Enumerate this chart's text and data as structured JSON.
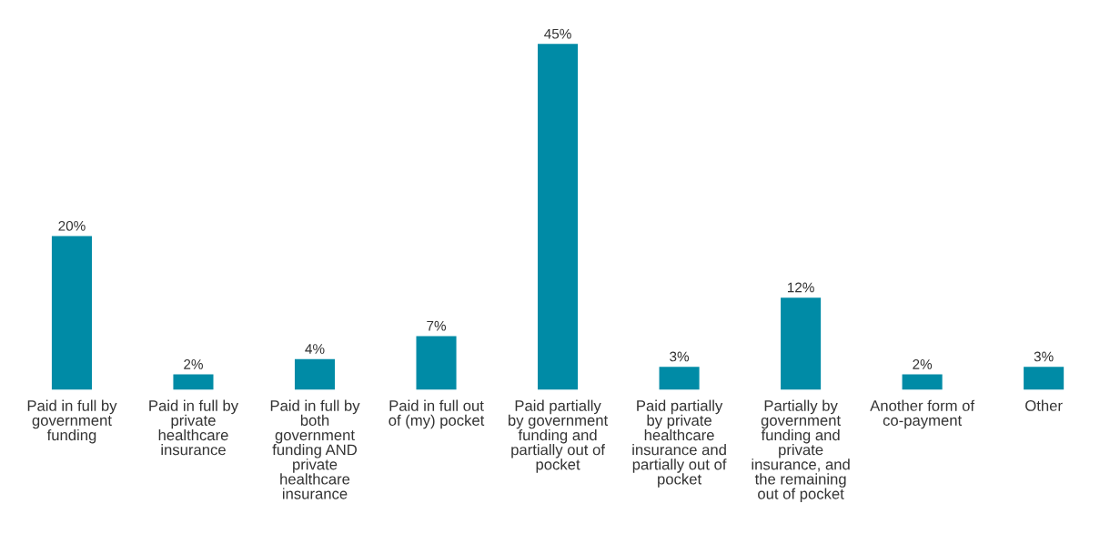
{
  "chart_data": {
    "type": "bar",
    "categories": [
      "Paid in full by\ngovernment\nfunding",
      "Paid in full by\nprivate\nhealthcare\ninsurance",
      "Paid in full by\nboth\ngovernment\nfunding AND\nprivate\nhealthcare\ninsurance",
      "Paid in full out\nof (my) pocket",
      "Paid partially\nby government\nfunding and\npartially out of\npocket",
      "Paid partially\nby private\nhealthcare\ninsurance and\npartially out of\npocket",
      "Partially by\ngovernment\nfunding and\nprivate\ninsurance, and\nthe remaining\nout of pocket",
      "Another form of\nco-payment",
      "Other"
    ],
    "values": [
      20,
      2,
      4,
      7,
      45,
      3,
      12,
      2,
      3
    ],
    "value_labels": [
      "20%",
      "2%",
      "4%",
      "7%",
      "45%",
      "3%",
      "12%",
      "2%",
      "3%"
    ],
    "color": "#008ba6"
  }
}
